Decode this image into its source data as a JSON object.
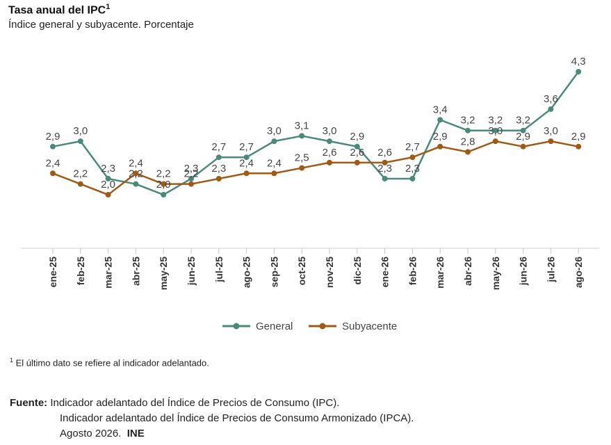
{
  "title": "Tasa anual del IPC",
  "title_sup": "1",
  "subtitle": "Índice general y subyacente. Porcentaje",
  "chart_data": {
    "type": "line",
    "categories": [
      "ene-25",
      "feb-25",
      "mar-25",
      "abr-25",
      "may-25",
      "jun-25",
      "jul-25",
      "ago-25",
      "sep-25",
      "oct-25",
      "nov-25",
      "dic-25",
      "ene-26",
      "feb-26",
      "mar-26",
      "abr-26",
      "may-26",
      "jun-26",
      "jul-26",
      "ago-26"
    ],
    "series": [
      {
        "name": "General",
        "color": "#4a8a7a",
        "values": [
          2.9,
          3.0,
          2.3,
          2.2,
          2.0,
          2.3,
          2.7,
          2.7,
          3.0,
          3.1,
          3.0,
          2.9,
          2.3,
          2.3,
          3.4,
          3.2,
          3.2,
          3.2,
          3.6,
          4.3
        ],
        "labels": [
          "2,9",
          "3,0",
          "2,3",
          "2,2",
          "2,0",
          "2,3",
          "2,7",
          "2,7",
          "3,0",
          "3,1",
          "3,0",
          "2,9",
          "2,3",
          "2,3",
          "3,4",
          "3,2",
          "3,2",
          "3,2",
          "3,6",
          "4,3"
        ]
      },
      {
        "name": "Subyacente",
        "color": "#a05a14",
        "values": [
          2.4,
          2.2,
          2.0,
          2.4,
          2.2,
          2.2,
          2.3,
          2.4,
          2.4,
          2.5,
          2.6,
          2.6,
          2.6,
          2.7,
          2.9,
          2.8,
          3.0,
          2.9,
          3.0,
          2.9
        ],
        "labels": [
          "2,4",
          "2,2",
          "2,0",
          "2,4",
          "2,2",
          "2,2",
          "2,3",
          "2,4",
          "2,4",
          "2,5",
          "2,6",
          "2,6",
          "2,6",
          "2,7",
          "2,9",
          "2,8",
          "3,0",
          "2,9",
          "3,0",
          "2,9"
        ]
      }
    ],
    "ylim": [
      1.0,
      4.6
    ],
    "grid": false,
    "legend_position": "bottom"
  },
  "footnote": {
    "marker": "1",
    "text": "El último dato se refiere al indicador adelantado."
  },
  "source": {
    "label": "Fuente:",
    "line1": "Indicador adelantado del Índice de Precios de Consumo (IPC).",
    "line2": "Indicador adelantado del Índice de Precios de Consumo Armonizado (IPCA).",
    "line3": "Agosto 2026.",
    "org": "INE"
  }
}
